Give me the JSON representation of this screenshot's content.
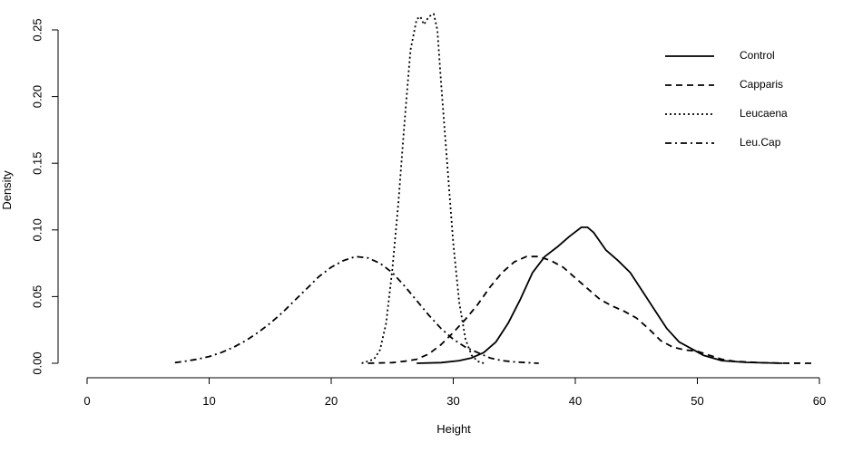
{
  "chart_data": {
    "type": "line",
    "xlabel": "Height",
    "ylabel": "Density",
    "xlim": [
      0,
      60
    ],
    "ylim": [
      0,
      0.26
    ],
    "x_ticks": [
      0,
      10,
      20,
      30,
      40,
      50,
      60
    ],
    "x_tick_labels": [
      "0",
      "10",
      "20",
      "30",
      "40",
      "50",
      "60"
    ],
    "y_ticks": [
      0.0,
      0.05,
      0.1,
      0.15,
      0.2,
      0.25
    ],
    "y_tick_labels": [
      "0.00",
      "0.05",
      "0.10",
      "0.15",
      "0.20",
      "0.25"
    ],
    "grid": false,
    "legend_position": "top-right",
    "series": [
      {
        "name": "Control",
        "line_style": "solid",
        "x": [
          27,
          29,
          30.5,
          31.5,
          32.5,
          33.5,
          34.5,
          35.5,
          36.5,
          37.5,
          38.5,
          39.5,
          40.5,
          41,
          41.5,
          42.5,
          43.5,
          44.5,
          45.5,
          46.5,
          47.5,
          48.5,
          49.5,
          50.5,
          52,
          54,
          57
        ],
        "y": [
          0.0,
          0.0005,
          0.002,
          0.004,
          0.008,
          0.016,
          0.03,
          0.048,
          0.068,
          0.08,
          0.087,
          0.095,
          0.102,
          0.102,
          0.098,
          0.085,
          0.077,
          0.068,
          0.054,
          0.04,
          0.026,
          0.016,
          0.011,
          0.006,
          0.002,
          0.0007,
          0.0
        ]
      },
      {
        "name": "Capparis",
        "line_style": "dashed",
        "x": [
          23,
          25,
          26,
          27,
          28,
          29,
          30,
          31,
          32,
          33,
          34,
          35,
          36,
          37,
          38,
          39,
          40,
          41,
          42,
          43,
          44,
          45,
          46,
          47,
          48,
          49,
          50,
          51,
          52,
          53,
          55,
          57,
          59.5
        ],
        "y": [
          0.0,
          0.0005,
          0.0015,
          0.003,
          0.007,
          0.014,
          0.023,
          0.033,
          0.044,
          0.057,
          0.068,
          0.076,
          0.08,
          0.08,
          0.077,
          0.072,
          0.064,
          0.056,
          0.048,
          0.043,
          0.039,
          0.034,
          0.026,
          0.017,
          0.012,
          0.01,
          0.009,
          0.006,
          0.003,
          0.0015,
          0.0005,
          0.0001,
          0.0
        ]
      },
      {
        "name": "Leucaena",
        "line_style": "dotted",
        "x": [
          22.5,
          23.5,
          24,
          24.5,
          25,
          25.5,
          26,
          26.5,
          27,
          27.3,
          27.6,
          28,
          28.4,
          28.7,
          29,
          29.5,
          30,
          30.5,
          31,
          31.5,
          32,
          32.5
        ],
        "y": [
          0.0,
          0.003,
          0.01,
          0.03,
          0.07,
          0.12,
          0.18,
          0.235,
          0.258,
          0.26,
          0.254,
          0.26,
          0.262,
          0.25,
          0.21,
          0.15,
          0.09,
          0.045,
          0.018,
          0.006,
          0.0015,
          0.0
        ]
      },
      {
        "name": "Leu.Cap",
        "line_style": "dotdash",
        "x": [
          7.2,
          8,
          9,
          10,
          11,
          12,
          13,
          14,
          15,
          16,
          17,
          18,
          19,
          20,
          21,
          22,
          23,
          24,
          25,
          26,
          27,
          28,
          29,
          30,
          31,
          32,
          33,
          34,
          35,
          36,
          37
        ],
        "y": [
          0.0005,
          0.0015,
          0.003,
          0.005,
          0.008,
          0.012,
          0.017,
          0.023,
          0.03,
          0.038,
          0.047,
          0.056,
          0.065,
          0.072,
          0.077,
          0.08,
          0.079,
          0.075,
          0.068,
          0.058,
          0.047,
          0.036,
          0.026,
          0.018,
          0.012,
          0.008,
          0.004,
          0.002,
          0.001,
          0.0005,
          0.0
        ]
      }
    ]
  }
}
